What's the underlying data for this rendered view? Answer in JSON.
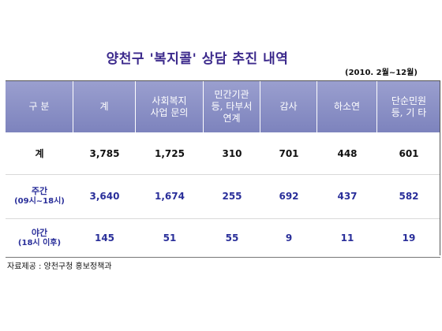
{
  "title": "양천구 '복지콜' 상담 추진 내역",
  "period": "(2010. 2월~12월)",
  "table": {
    "headers": [
      "구 분",
      "계",
      "사회복지\n사업 문의",
      "민간기관\n등, 타부서\n연계",
      "감사",
      "하소연",
      "단순민원\n등, 기 타"
    ],
    "rows": [
      {
        "label": "계",
        "sublabel": "",
        "values": [
          "3,785",
          "1,725",
          "310",
          "701",
          "448",
          "601"
        ]
      },
      {
        "label": "주간",
        "sublabel": "(09시~18시)",
        "values": [
          "3,640",
          "1,674",
          "255",
          "692",
          "437",
          "582"
        ]
      },
      {
        "label": "야간",
        "sublabel": "(18시 이후)",
        "values": [
          "145",
          "51",
          "55",
          "9",
          "11",
          "19"
        ]
      }
    ]
  },
  "source": "자료제공 : 양천구청 홍보정책과",
  "colors": {
    "header_bg": "#8a8fc6",
    "title": "#3c2a8c",
    "value_blue": "#2a2f9a"
  }
}
